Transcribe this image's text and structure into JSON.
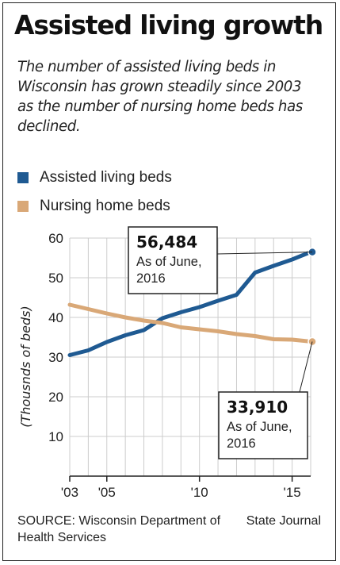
{
  "title": "Assisted living growth",
  "subtitle": "The number of assisted living beds in Wisconsin has grown steadily since 2003 as the number of nursing home beds has declined.",
  "source": "SOURCE: Wisconsin Department of Health Services",
  "credit": "State Journal",
  "colors": {
    "assisted": "#1f5a92",
    "nursing": "#d9a877",
    "grid": "#cccccc"
  },
  "chart_data": {
    "type": "line",
    "ylabel": "(Thousnds of beds)",
    "ylim": [
      0,
      60
    ],
    "yticks": [
      10,
      20,
      30,
      40,
      50,
      60
    ],
    "xlim": [
      2003,
      2016
    ],
    "xticks": [
      {
        "year": 2003,
        "label": "'03"
      },
      {
        "year": 2005,
        "label": "'05"
      },
      {
        "year": 2010,
        "label": "'10"
      },
      {
        "year": 2015,
        "label": "'15"
      }
    ],
    "grid": true,
    "legend": "top-left",
    "series": [
      {
        "name": "Assisted living beds",
        "x": [
          2003,
          2004,
          2005,
          2006,
          2007,
          2008,
          2009,
          2010,
          2011,
          2012,
          2013,
          2014,
          2015,
          2016
        ],
        "values": [
          30.5,
          31.7,
          33.8,
          35.5,
          36.8,
          39.8,
          41.3,
          42.6,
          44.2,
          45.7,
          51.3,
          53.0,
          54.6,
          56.484
        ]
      },
      {
        "name": "Nursing home beds",
        "x": [
          2003,
          2004,
          2005,
          2006,
          2007,
          2008,
          2009,
          2010,
          2011,
          2012,
          2013,
          2014,
          2015,
          2016
        ],
        "values": [
          43.2,
          42.1,
          41.0,
          40.0,
          39.2,
          38.6,
          37.5,
          37.0,
          36.5,
          35.8,
          35.3,
          34.5,
          34.4,
          33.91
        ]
      }
    ],
    "annotations": [
      {
        "series": 0,
        "value": "56,484",
        "lines": [
          "As of June,",
          "2016"
        ]
      },
      {
        "series": 1,
        "value": "33,910",
        "lines": [
          "As of June,",
          "2016"
        ]
      }
    ]
  }
}
